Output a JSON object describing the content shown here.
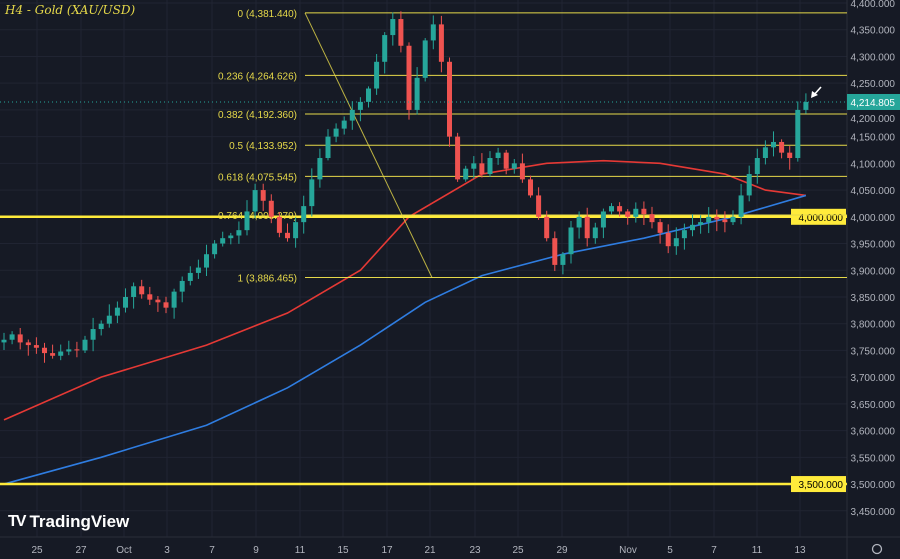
{
  "header": {
    "title": "H4 - Gold (XAU/USD)"
  },
  "branding": {
    "logo_text": "TradingView"
  },
  "colors": {
    "background": "#161a25",
    "grid": "#202432",
    "bull": "#26a69a",
    "bear": "#ef5350",
    "fib": "#e6d94a",
    "level": "#ffeb3b",
    "ma_red": "#e53935",
    "ma_blue": "#2f7de1",
    "price_tag": "#26a69a"
  },
  "chart_data": {
    "type": "candlestick",
    "title": "H4 - Gold (XAU/USD)",
    "ylim": [
      3450,
      4400
    ],
    "y_ticks": [
      4400,
      4350,
      4300,
      4250,
      4200,
      4150,
      4100,
      4050,
      4000,
      3950,
      3900,
      3850,
      3800,
      3750,
      3700,
      3650,
      3600,
      3550,
      3500,
      3450
    ],
    "x_ticks": [
      "25",
      "27",
      "Oct",
      "3",
      "7",
      "9",
      "11",
      "15",
      "17",
      "21",
      "23",
      "25",
      "29",
      "Nov",
      "5",
      "7",
      "11",
      "13"
    ],
    "closes": [
      3770,
      3780,
      3765,
      3760,
      3755,
      3745,
      3740,
      3748,
      3752,
      3750,
      3770,
      3790,
      3800,
      3815,
      3830,
      3850,
      3870,
      3855,
      3845,
      3840,
      3830,
      3860,
      3880,
      3895,
      3905,
      3930,
      3950,
      3960,
      3965,
      3975,
      4010,
      4050,
      4030,
      4000,
      3970,
      3960,
      3990,
      4020,
      4070,
      4110,
      4150,
      4165,
      4180,
      4200,
      4215,
      4240,
      4290,
      4340,
      4370,
      4320,
      4200,
      4260,
      4330,
      4360,
      4290,
      4150,
      4070,
      4090,
      4100,
      4080,
      4110,
      4120,
      4090,
      4100,
      4070,
      4040,
      4000,
      3960,
      3910,
      3930,
      3980,
      4000,
      3960,
      3980,
      4010,
      4020,
      4010,
      4000,
      4015,
      4005,
      3990,
      3970,
      3945,
      3960,
      3975,
      3985,
      3990,
      4000,
      3995,
      3990,
      4000,
      4040,
      4080,
      4110,
      4130,
      4140,
      4120,
      4110,
      4200,
      4214.805
    ],
    "moving_averages": [
      {
        "color": "red",
        "points": [
          [
            0,
            3620
          ],
          [
            12,
            3700
          ],
          [
            25,
            3760
          ],
          [
            35,
            3820
          ],
          [
            44,
            3900
          ],
          [
            50,
            4000
          ],
          [
            59,
            4080
          ],
          [
            67,
            4100
          ],
          [
            74,
            4105
          ],
          [
            81,
            4100
          ],
          [
            89,
            4080
          ],
          [
            94,
            4050
          ],
          [
            99,
            4040
          ]
        ]
      },
      {
        "color": "blue",
        "points": [
          [
            0,
            3500
          ],
          [
            12,
            3550
          ],
          [
            25,
            3610
          ],
          [
            35,
            3680
          ],
          [
            44,
            3760
          ],
          [
            52,
            3840
          ],
          [
            59,
            3890
          ],
          [
            69,
            3930
          ],
          [
            79,
            3960
          ],
          [
            90,
            4000
          ],
          [
            99,
            4040
          ]
        ]
      }
    ],
    "fibonacci": {
      "high": 4381.44,
      "low": 3886.465,
      "levels": [
        {
          "label": "0 (4,381.440)",
          "value": 4381.44
        },
        {
          "label": "0.236 (4,264.626)",
          "value": 4264.626
        },
        {
          "label": "0.382 (4,192.360)",
          "value": 4192.36
        },
        {
          "label": "0.5 (4,133.952)",
          "value": 4133.952
        },
        {
          "label": "0.618 (4,075.545)",
          "value": 4075.545
        },
        {
          "label": "0.764 (4,003.279)",
          "value": 4003.279
        },
        {
          "label": "1 (3,886.465)",
          "value": 3886.465
        }
      ]
    },
    "horizontal_levels": [
      {
        "label": "4,000.000",
        "value": 4000
      },
      {
        "label": "3,500.000",
        "value": 3500
      }
    ],
    "last_price": {
      "label": "4,214.805",
      "value": 4214.805
    },
    "grid": true
  }
}
